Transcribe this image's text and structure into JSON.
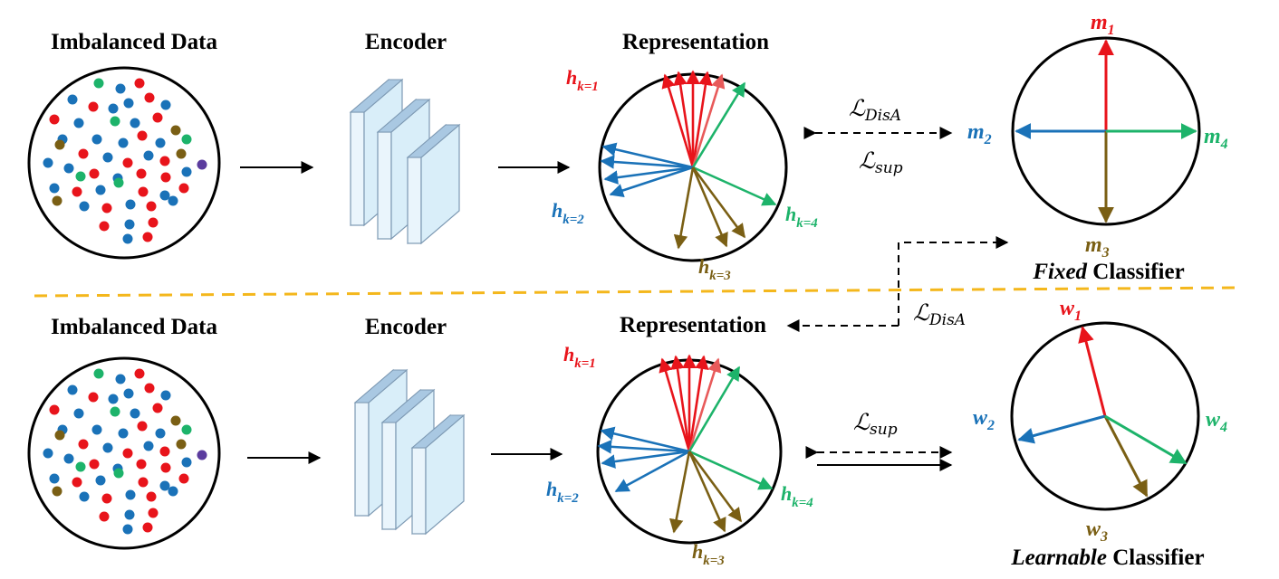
{
  "colors": {
    "red": "#e8141b",
    "blue": "#1a72b8",
    "green": "#1db36a",
    "olive": "#7a5f14",
    "purple": "#5b3c9e",
    "divider": "#f4b71c",
    "encoder_face": "#d9eef9",
    "encoder_edge": "#a9c8e2"
  },
  "top": {
    "data_title": "Imbalanced Data",
    "encoder_title": "Encoder",
    "representation_title": "Representation",
    "classifier_caption_italic": "Fixed",
    "classifier_caption_rest": " Classifier",
    "loss_upper": "DisA",
    "loss_lower": "sup",
    "rep_labels": {
      "h1": {
        "base": "h",
        "sub": "k=1"
      },
      "h2": {
        "base": "h",
        "sub": "k=2"
      },
      "h3": {
        "base": "h",
        "sub": "k=3"
      },
      "h4": {
        "base": "h",
        "sub": "k=4"
      }
    },
    "classifier_labels": {
      "c1": {
        "base": "m",
        "sub": "1"
      },
      "c2": {
        "base": "m",
        "sub": "2"
      },
      "c3": {
        "base": "m",
        "sub": "3"
      },
      "c4": {
        "base": "m",
        "sub": "4"
      }
    }
  },
  "bottom": {
    "data_title": "Imbalanced Data",
    "encoder_title": "Encoder",
    "representation_title": "Representation",
    "classifier_caption_italic": "Learnable",
    "classifier_caption_rest": " Classifier",
    "loss_upper": "sup",
    "rep_labels": {
      "h1": {
        "base": "h",
        "sub": "k=1"
      },
      "h2": {
        "base": "h",
        "sub": "k=2"
      },
      "h3": {
        "base": "h",
        "sub": "k=3"
      },
      "h4": {
        "base": "h",
        "sub": "k=4"
      }
    },
    "classifier_labels": {
      "c1": {
        "base": "w",
        "sub": "1"
      },
      "c2": {
        "base": "w",
        "sub": "2"
      },
      "c3": {
        "base": "w",
        "sub": "3"
      },
      "c4": {
        "base": "w",
        "sub": "4"
      }
    }
  },
  "middle_loss": "DisA",
  "loss_symbol": "ℒ"
}
